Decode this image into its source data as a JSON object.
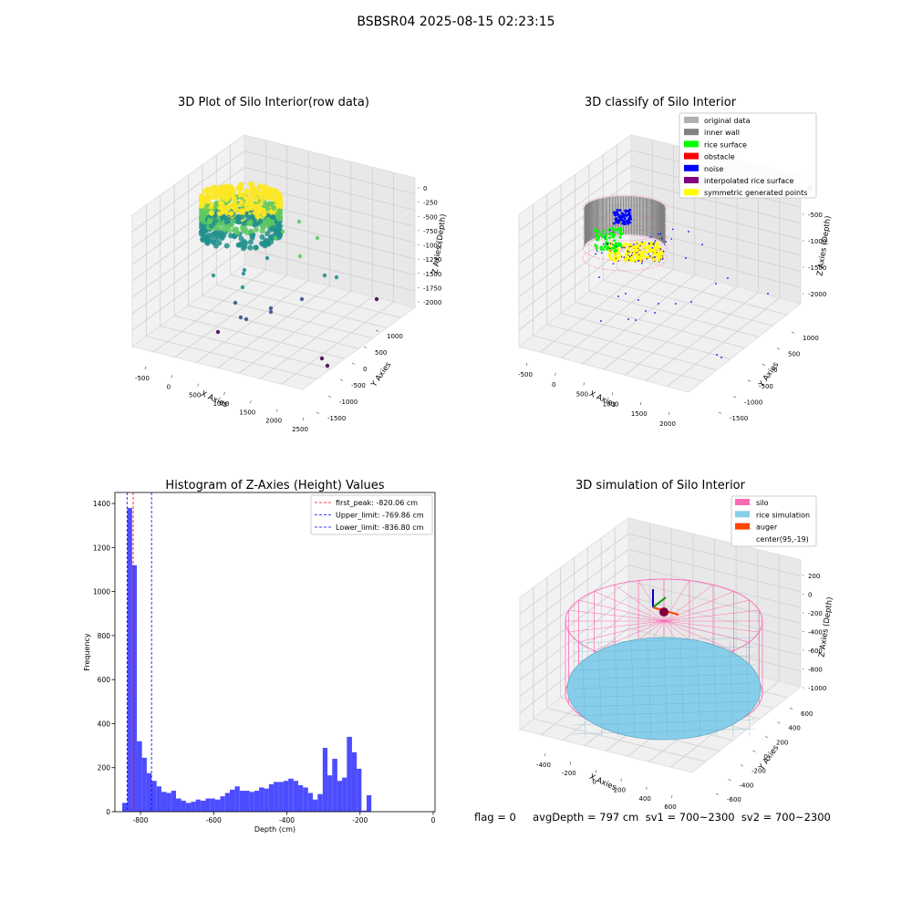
{
  "figure": {
    "title": "BSBSR04 2025-08-15 02:23:15",
    "bottom_text": "flag = 0     avgDepth = 797 cm  sv1 = 700~2300  sv2 = 700~2300"
  },
  "chart_data": [
    {
      "type": "scatter",
      "title": "3D Plot of Silo Interior(row data)",
      "xlabel": "X Axies",
      "ylabel": "Y Axies",
      "zlabel": "Z Axies (Depth)",
      "x_ticks": [
        "-500",
        "0",
        "500",
        "1000",
        "1500",
        "2000",
        "2500"
      ],
      "y_ticks": [
        "1000",
        "500",
        "0",
        "-500",
        "-1000",
        "-1500"
      ],
      "z_ticks": [
        "0",
        "-250",
        "-500",
        "-750",
        "-1000",
        "-1250",
        "-1500",
        "-1750",
        "-2000"
      ],
      "colormap": [
        "#440154",
        "#3b528b",
        "#21918c",
        "#5ec962",
        "#fde725"
      ]
    },
    {
      "type": "scatter",
      "title": "3D classify of Silo Interior",
      "xlabel": "X Axies",
      "ylabel": "Y Axies",
      "zlabel": "Z Axies (Depth)",
      "x_ticks": [
        "-500",
        "0",
        "500",
        "1000",
        "1500",
        "2000"
      ],
      "y_ticks": [
        "1000",
        "500",
        "0",
        "-500",
        "-1000",
        "-1500"
      ],
      "z_ticks": [
        "0",
        "-500",
        "-1000",
        "-1500",
        "-2000"
      ],
      "legend_position": "top-right",
      "legend": [
        {
          "label": "original data",
          "color": "#b0b0b0"
        },
        {
          "label": "inner wall",
          "color": "#808080"
        },
        {
          "label": "rice surface",
          "color": "#00ff00"
        },
        {
          "label": "obstacle",
          "color": "#ff0000"
        },
        {
          "label": "noise",
          "color": "#0000ff"
        },
        {
          "label": "interpolated rice surface",
          "color": "#800080"
        },
        {
          "label": "symmetric generated points",
          "color": "#ffff00"
        }
      ]
    },
    {
      "type": "bar",
      "title": "Histogram of Z-Axies (Height) Values",
      "xlabel": "Depth (cm)",
      "ylabel": "Frequency",
      "xlim": [
        -870,
        5
      ],
      "ylim": [
        0,
        1450
      ],
      "x_ticks": [
        -800,
        -600,
        -400,
        -200,
        0
      ],
      "y_ticks": [
        0,
        200,
        400,
        600,
        800,
        1000,
        1200,
        1400
      ],
      "bar_color": "#4d4dff",
      "bins": [
        {
          "x0": -850,
          "x1": -836,
          "value": 40
        },
        {
          "x0": -836,
          "x1": -823,
          "value": 1380
        },
        {
          "x0": -823,
          "x1": -810,
          "value": 1120
        },
        {
          "x0": -810,
          "x1": -796,
          "value": 320
        },
        {
          "x0": -796,
          "x1": -783,
          "value": 245
        },
        {
          "x0": -783,
          "x1": -770,
          "value": 175
        },
        {
          "x0": -770,
          "x1": -756,
          "value": 140
        },
        {
          "x0": -756,
          "x1": -743,
          "value": 115
        },
        {
          "x0": -743,
          "x1": -729,
          "value": 90
        },
        {
          "x0": -729,
          "x1": -716,
          "value": 85
        },
        {
          "x0": -716,
          "x1": -703,
          "value": 95
        },
        {
          "x0": -703,
          "x1": -689,
          "value": 60
        },
        {
          "x0": -689,
          "x1": -676,
          "value": 50
        },
        {
          "x0": -676,
          "x1": -662,
          "value": 40
        },
        {
          "x0": -662,
          "x1": -649,
          "value": 45
        },
        {
          "x0": -649,
          "x1": -636,
          "value": 55
        },
        {
          "x0": -636,
          "x1": -622,
          "value": 50
        },
        {
          "x0": -622,
          "x1": -609,
          "value": 60
        },
        {
          "x0": -609,
          "x1": -596,
          "value": 60
        },
        {
          "x0": -596,
          "x1": -582,
          "value": 55
        },
        {
          "x0": -582,
          "x1": -569,
          "value": 70
        },
        {
          "x0": -569,
          "x1": -556,
          "value": 85
        },
        {
          "x0": -556,
          "x1": -542,
          "value": 100
        },
        {
          "x0": -542,
          "x1": -529,
          "value": 115
        },
        {
          "x0": -529,
          "x1": -516,
          "value": 95
        },
        {
          "x0": -516,
          "x1": -502,
          "value": 95
        },
        {
          "x0": -502,
          "x1": -489,
          "value": 90
        },
        {
          "x0": -489,
          "x1": -476,
          "value": 95
        },
        {
          "x0": -476,
          "x1": -462,
          "value": 110
        },
        {
          "x0": -462,
          "x1": -449,
          "value": 105
        },
        {
          "x0": -449,
          "x1": -436,
          "value": 125
        },
        {
          "x0": -436,
          "x1": -422,
          "value": 135
        },
        {
          "x0": -422,
          "x1": -409,
          "value": 135
        },
        {
          "x0": -409,
          "x1": -396,
          "value": 140
        },
        {
          "x0": -396,
          "x1": -382,
          "value": 150
        },
        {
          "x0": -382,
          "x1": -369,
          "value": 140
        },
        {
          "x0": -369,
          "x1": -356,
          "value": 120
        },
        {
          "x0": -356,
          "x1": -342,
          "value": 110
        },
        {
          "x0": -342,
          "x1": -329,
          "value": 85
        },
        {
          "x0": -329,
          "x1": -316,
          "value": 55
        },
        {
          "x0": -316,
          "x1": -302,
          "value": 80
        },
        {
          "x0": -302,
          "x1": -289,
          "value": 290
        },
        {
          "x0": -289,
          "x1": -276,
          "value": 165
        },
        {
          "x0": -276,
          "x1": -262,
          "value": 240
        },
        {
          "x0": -262,
          "x1": -249,
          "value": 140
        },
        {
          "x0": -249,
          "x1": -236,
          "value": 155
        },
        {
          "x0": -236,
          "x1": -222,
          "value": 340
        },
        {
          "x0": -222,
          "x1": -209,
          "value": 270
        },
        {
          "x0": -209,
          "x1": -196,
          "value": 195
        },
        {
          "x0": -196,
          "x1": -182,
          "value": 5
        },
        {
          "x0": -182,
          "x1": -169,
          "value": 75
        }
      ],
      "vlines": [
        {
          "label": "first_peak: -820.06 cm",
          "x": -820.06,
          "color": "#ff0000"
        },
        {
          "label": "Upper_limit: -769.86 cm",
          "x": -769.86,
          "color": "#0000ff"
        },
        {
          "label": "Lower_limit: -836.80 cm",
          "x": -836.8,
          "color": "#0000ff"
        }
      ],
      "legend_position": "top-right"
    },
    {
      "type": "scatter",
      "title": "3D simulation of Silo Interior",
      "xlabel": "X Axies",
      "ylabel": "Y Axies",
      "zlabel": "Z Axies (Depth)",
      "x_ticks": [
        "-400",
        "-200",
        "0",
        "200",
        "400",
        "600"
      ],
      "y_ticks": [
        "600",
        "400",
        "200",
        "0",
        "-200",
        "-400",
        "-600"
      ],
      "z_ticks": [
        "200",
        "0",
        "-200",
        "-400",
        "-600",
        "-800",
        "-1000"
      ],
      "legend_position": "top-right",
      "legend": [
        {
          "label": "silo",
          "color": "#ff69b4"
        },
        {
          "label": "rice simulation",
          "color": "#87ceeb"
        },
        {
          "label": "auger",
          "color": "#ff4500"
        },
        {
          "label": "center(95,-19)",
          "color": "#ffffff"
        }
      ]
    }
  ]
}
